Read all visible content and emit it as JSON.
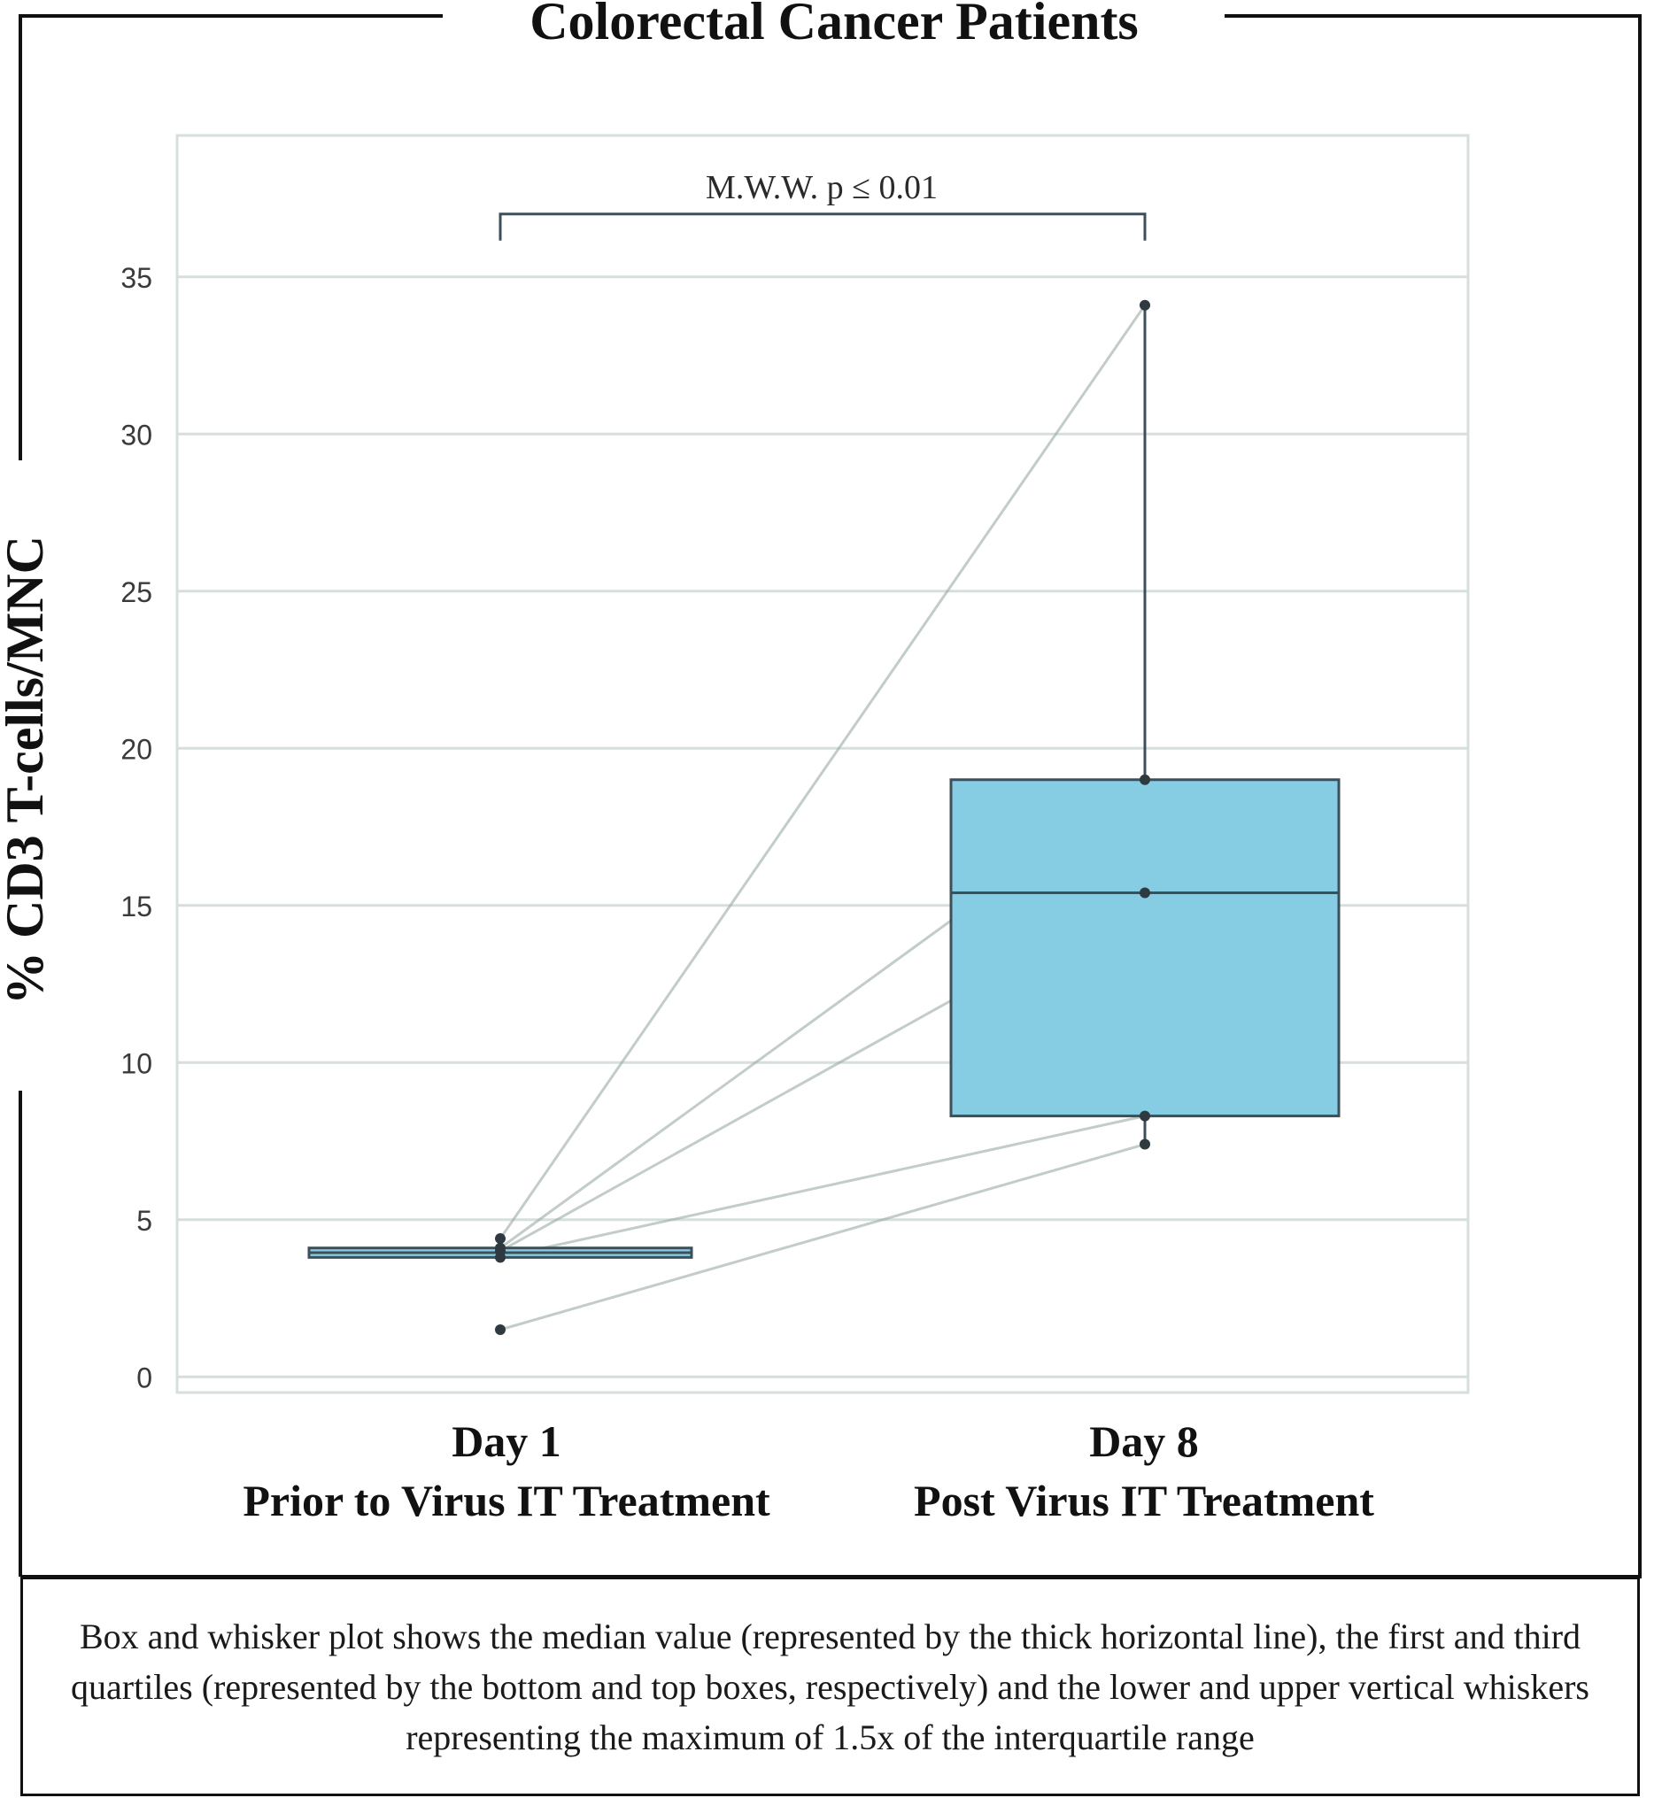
{
  "panel": {
    "title": "Colorectal Cancer Patients",
    "caption": "Box and whisker plot shows the median value (represented by the thick horizontal line), the first and third quartiles (represented by the bottom and top boxes, respectively) and the lower and upper vertical whiskers representing the maximum of 1.5x of the interquartile range"
  },
  "colors": {
    "box_fill": "#86cde4",
    "box_stroke": "#3d4f58",
    "grid": "#d6dfdc",
    "paired_line": "#9aaaa4",
    "point": "#2f3a40",
    "frame": "#111111"
  },
  "chart_data": {
    "type": "box",
    "title": "Colorectal Cancer Patients",
    "ylabel": "% CD3 T-cells/MNC",
    "xlabel": "",
    "ylim": [
      -0.5,
      39.5
    ],
    "yticks": [
      0,
      5,
      10,
      15,
      20,
      25,
      30,
      35
    ],
    "grid": true,
    "categories": [
      {
        "line1": "Day 1",
        "line2": "Prior to Virus IT Treatment"
      },
      {
        "line1": "Day 8",
        "line2": "Post Virus IT Treatment"
      }
    ],
    "boxes": [
      {
        "q1": 3.8,
        "median": 3.95,
        "q3": 4.1,
        "whisker_low": 3.8,
        "whisker_high": 4.1
      },
      {
        "q1": 8.3,
        "median": 15.4,
        "q3": 19.0,
        "whisker_low": 7.4,
        "whisker_high": 34.1
      }
    ],
    "points_day1": [
      4.4,
      4.1,
      4.0,
      3.8,
      1.5
    ],
    "points_day8": [
      34.1,
      19.0,
      15.4,
      8.3,
      7.4
    ],
    "pairs": [
      [
        4.4,
        34.1
      ],
      [
        4.1,
        19.0
      ],
      [
        4.0,
        15.4
      ],
      [
        3.8,
        8.3
      ],
      [
        1.5,
        7.4
      ]
    ],
    "annotation": {
      "text": "M.W.W. p ≤ 0.01",
      "y": 37.0
    }
  }
}
